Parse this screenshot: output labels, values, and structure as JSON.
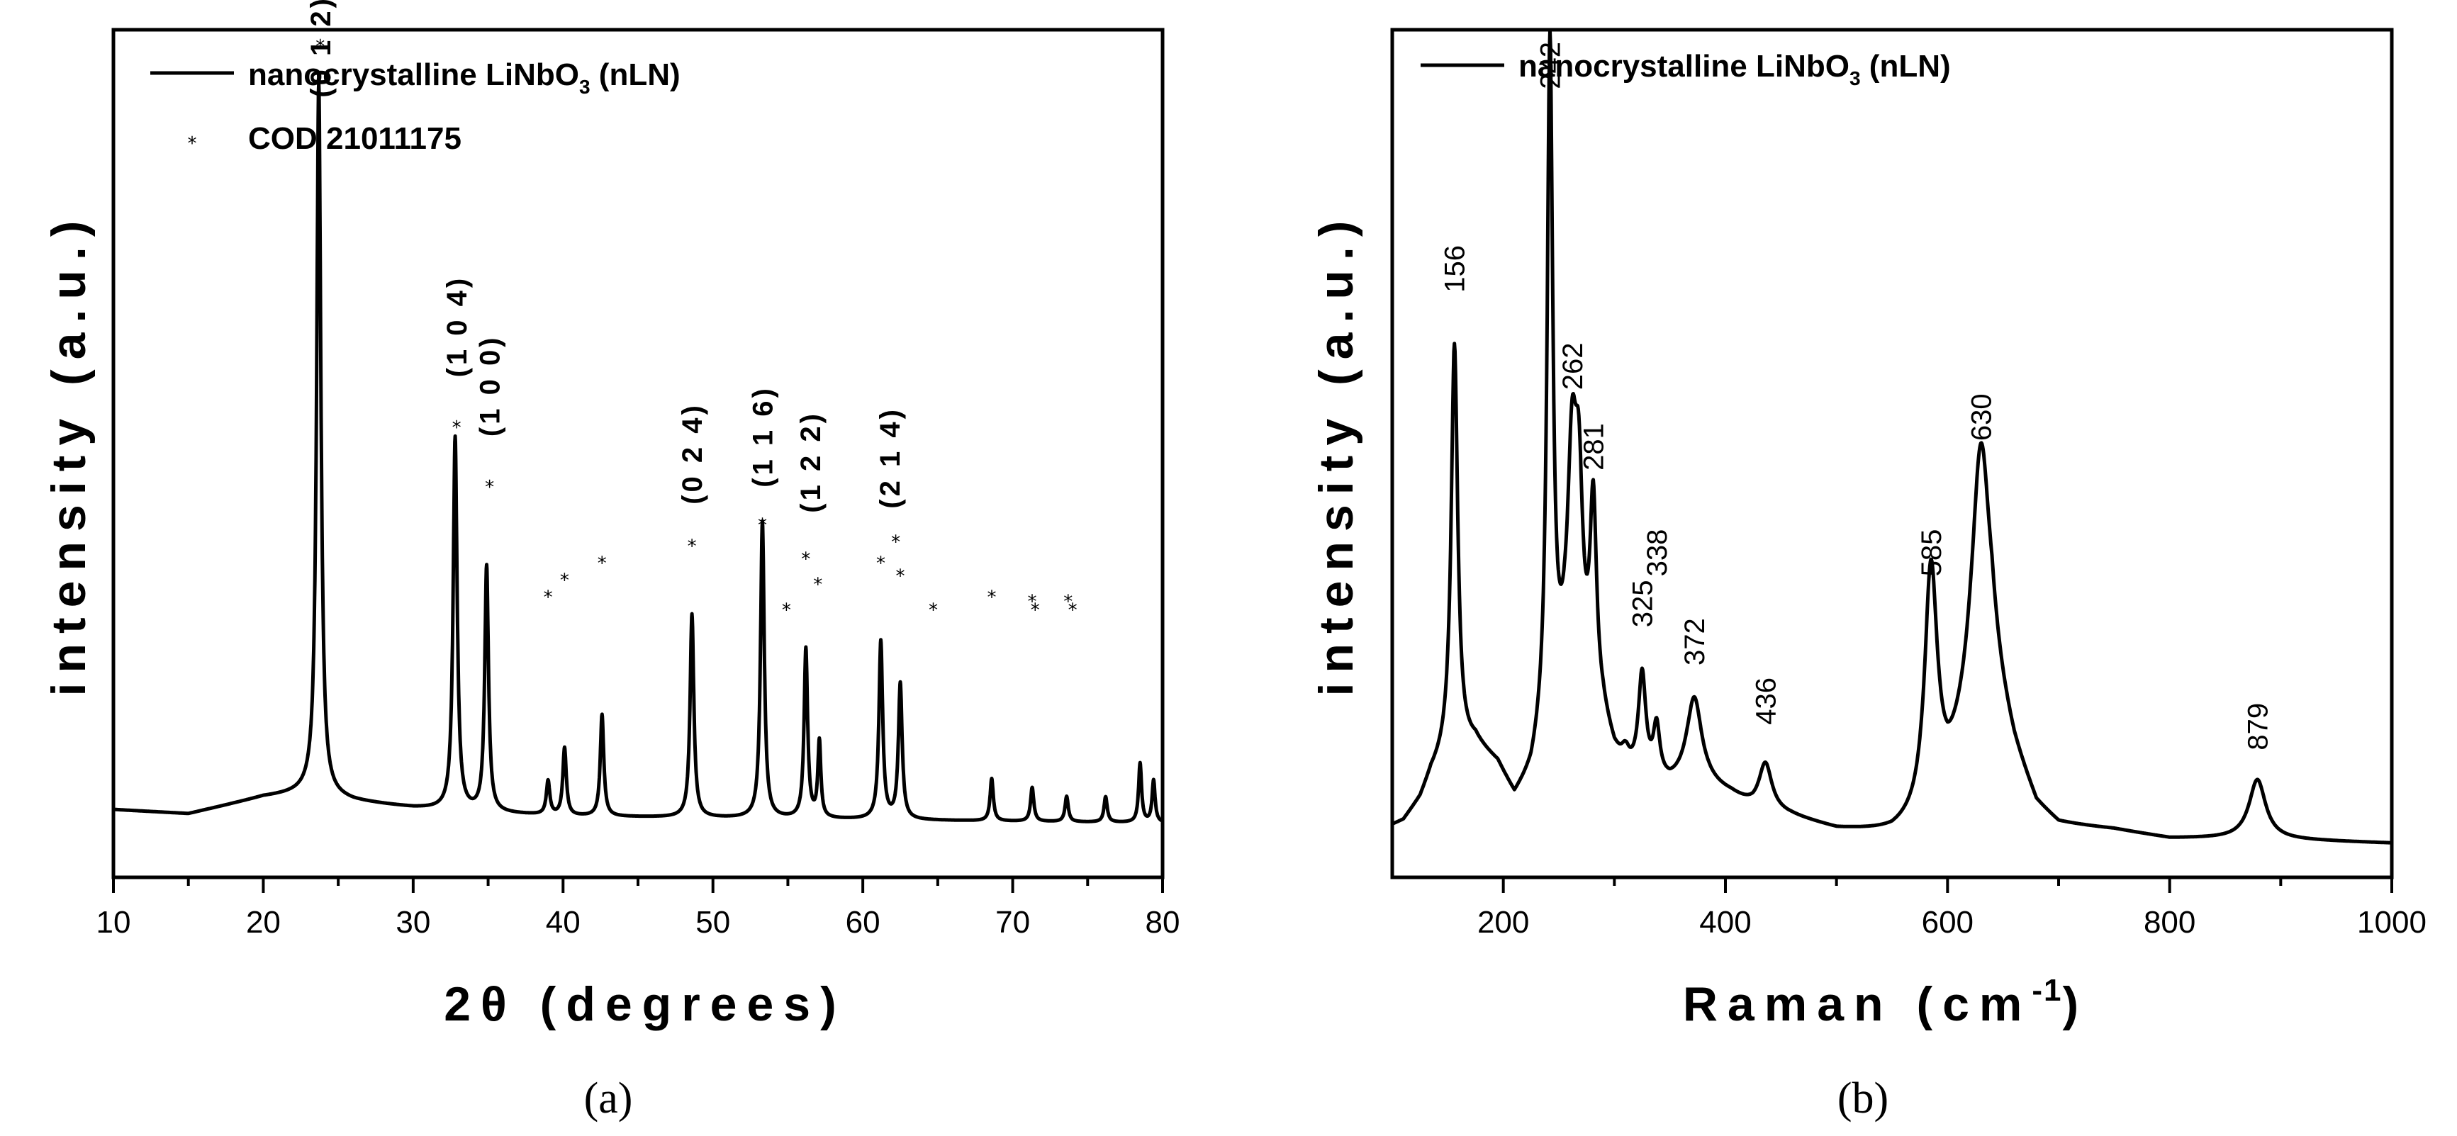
{
  "chart_data": [
    {
      "type": "line",
      "panel_label": "(a)",
      "xlabel": "2θ (degrees)",
      "ylabel": "intensity (a.u.)",
      "xlim": [
        10,
        80
      ],
      "ylim": [
        0,
        100
      ],
      "xticks": [
        10,
        20,
        30,
        40,
        50,
        60,
        70,
        80
      ],
      "legend": [
        {
          "label": "nanocrystalline LiNbO",
          "subscript": "3",
          "suffix": " (nLN)",
          "style": "line"
        },
        {
          "label": "COD 21011175",
          "style": "marker",
          "marker": "*"
        }
      ],
      "series": [
        {
          "name": "nanocrystalline LiNbO3 (nLN)",
          "baseline": [
            [
              10,
              8.0
            ],
            [
              15,
              7.5
            ],
            [
              20,
              9.5
            ],
            [
              23,
              10.0
            ],
            [
              26,
              9.0
            ],
            [
              30,
              8.2
            ],
            [
              35,
              7.6
            ],
            [
              40,
              7.2
            ],
            [
              50,
              7.0
            ],
            [
              60,
              6.8
            ],
            [
              70,
              6.6
            ],
            [
              80,
              6.4
            ]
          ],
          "peaks": [
            {
              "x": 23.7,
              "y": 84.0,
              "w": 0.17
            },
            {
              "x": 32.8,
              "y": 44.0,
              "w": 0.16
            },
            {
              "x": 34.9,
              "y": 29.0,
              "w": 0.15
            },
            {
              "x": 39.0,
              "y": 4.0,
              "w": 0.14
            },
            {
              "x": 40.1,
              "y": 8.0,
              "w": 0.14
            },
            {
              "x": 42.6,
              "y": 12.0,
              "w": 0.14
            },
            {
              "x": 48.6,
              "y": 24.0,
              "w": 0.15
            },
            {
              "x": 53.3,
              "y": 35.0,
              "w": 0.15
            },
            {
              "x": 56.2,
              "y": 20.0,
              "w": 0.14
            },
            {
              "x": 57.1,
              "y": 9.0,
              "w": 0.12
            },
            {
              "x": 61.2,
              "y": 21.0,
              "w": 0.15
            },
            {
              "x": 62.5,
              "y": 16.0,
              "w": 0.15
            },
            {
              "x": 68.6,
              "y": 5.0,
              "w": 0.13
            },
            {
              "x": 71.3,
              "y": 4.0,
              "w": 0.13
            },
            {
              "x": 73.6,
              "y": 3.0,
              "w": 0.13
            },
            {
              "x": 76.2,
              "y": 3.0,
              "w": 0.13
            },
            {
              "x": 78.5,
              "y": 7.0,
              "w": 0.12
            },
            {
              "x": 79.4,
              "y": 5.0,
              "w": 0.12
            }
          ]
        },
        {
          "name": "COD 21011175",
          "style": "markers",
          "points": [
            [
              23.8,
              98.0
            ],
            [
              32.9,
              53.0
            ],
            [
              35.1,
              46.0
            ],
            [
              39.0,
              33.0
            ],
            [
              40.1,
              35.0
            ],
            [
              42.6,
              37.0
            ],
            [
              48.6,
              39.0
            ],
            [
              53.3,
              41.5
            ],
            [
              54.9,
              31.5
            ],
            [
              56.2,
              37.5
            ],
            [
              57.0,
              34.5
            ],
            [
              61.2,
              37.0
            ],
            [
              62.2,
              39.5
            ],
            [
              62.5,
              35.5
            ],
            [
              64.7,
              31.5
            ],
            [
              68.6,
              33.0
            ],
            [
              71.3,
              32.5
            ],
            [
              71.5,
              31.5
            ],
            [
              73.7,
              32.5
            ],
            [
              74.0,
              31.5
            ]
          ]
        }
      ],
      "annotations": [
        {
          "text": "(0 1 2)",
          "x": 23.8,
          "y": 92.0
        },
        {
          "text": "(1 0 4)",
          "x": 32.9,
          "y": 59.0
        },
        {
          "text": "(1 0 0)",
          "x": 35.1,
          "y": 52.0
        },
        {
          "text": "(0 2 4)",
          "x": 48.6,
          "y": 44.0
        },
        {
          "text": "(1 1 6)",
          "x": 53.3,
          "y": 46.0
        },
        {
          "text": "(1 2 2)",
          "x": 56.5,
          "y": 43.0
        },
        {
          "text": "(2 1 4)",
          "x": 61.8,
          "y": 43.5
        }
      ]
    },
    {
      "type": "line",
      "panel_label": "(b)",
      "xlabel": "Raman (cm",
      "xlabel_superscript": "-1",
      "xlabel_suffix": ")",
      "ylabel": "intensity (a.u.)",
      "xlim": [
        100,
        1000
      ],
      "ylim": [
        0,
        100
      ],
      "xticks": [
        200,
        400,
        600,
        800,
        1000
      ],
      "legend": [
        {
          "label": "nanocrystalline LiNbO",
          "subscript": "3",
          "suffix": " (nLN)",
          "style": "line"
        }
      ],
      "series": [
        {
          "name": "nanocrystalline LiNbO3 (nLN)",
          "baseline": [
            [
              100,
              6.0
            ],
            [
              110,
              6.5
            ],
            [
              125,
              9.0
            ],
            [
              135,
              12.0
            ],
            [
              150,
              14.5
            ],
            [
              175,
              15.5
            ],
            [
              195,
              13.0
            ],
            [
              210,
              9.0
            ],
            [
              225,
              11.5
            ],
            [
              240,
              18.0
            ],
            [
              255,
              22.0
            ],
            [
              270,
              22.0
            ],
            [
              290,
              18.0
            ],
            [
              300,
              14.0
            ],
            [
              310,
              12.0
            ],
            [
              330,
              11.0
            ],
            [
              350,
              10.5
            ],
            [
              365,
              11.0
            ],
            [
              385,
              10.5
            ],
            [
              405,
              9.5
            ],
            [
              425,
              8.0
            ],
            [
              460,
              7.0
            ],
            [
              500,
              5.5
            ],
            [
              550,
              5.0
            ],
            [
              580,
              6.0
            ],
            [
              600,
              10.0
            ],
            [
              620,
              17.0
            ],
            [
              640,
              22.0
            ],
            [
              660,
              14.0
            ],
            [
              680,
              8.0
            ],
            [
              700,
              6.0
            ],
            [
              750,
              5.5
            ],
            [
              800,
              4.5
            ],
            [
              840,
              4.5
            ],
            [
              870,
              4.5
            ],
            [
              1000,
              4.0
            ]
          ],
          "peaks": [
            {
              "x": 156,
              "y": 48.0,
              "w": 3.5
            },
            {
              "x": 242,
              "y": 79.0,
              "w": 3.0
            },
            {
              "x": 262,
              "y": 26.0,
              "w": 5.0
            },
            {
              "x": 268,
              "y": 19.0,
              "w": 4.0
            },
            {
              "x": 281,
              "y": 23.0,
              "w": 3.5
            },
            {
              "x": 310,
              "y": 2.0,
              "w": 4.0
            },
            {
              "x": 325,
              "y": 12.0,
              "w": 4.0
            },
            {
              "x": 338,
              "y": 6.0,
              "w": 3.5
            },
            {
              "x": 372,
              "y": 10.0,
              "w": 8.0
            },
            {
              "x": 436,
              "y": 5.5,
              "w": 7.0
            },
            {
              "x": 585,
              "y": 29.0,
              "w": 7.0
            },
            {
              "x": 630,
              "y": 31.0,
              "w": 10.0
            },
            {
              "x": 879,
              "y": 7.0,
              "w": 9.0
            }
          ]
        }
      ],
      "annotations": [
        {
          "text": "156",
          "x": 156,
          "y": 69.0
        },
        {
          "text": "242",
          "x": 242,
          "y": 93.0
        },
        {
          "text": "262",
          "x": 262,
          "y": 57.5
        },
        {
          "text": "281",
          "x": 281,
          "y": 48.0
        },
        {
          "text": "325",
          "x": 325,
          "y": 29.5
        },
        {
          "text": "338",
          "x": 338,
          "y": 35.5
        },
        {
          "text": "372",
          "x": 372,
          "y": 25.0
        },
        {
          "text": "436",
          "x": 436,
          "y": 18.0
        },
        {
          "text": "585",
          "x": 585,
          "y": 35.5
        },
        {
          "text": "630",
          "x": 630,
          "y": 51.5
        },
        {
          "text": "879",
          "x": 879,
          "y": 15.0
        }
      ]
    }
  ]
}
